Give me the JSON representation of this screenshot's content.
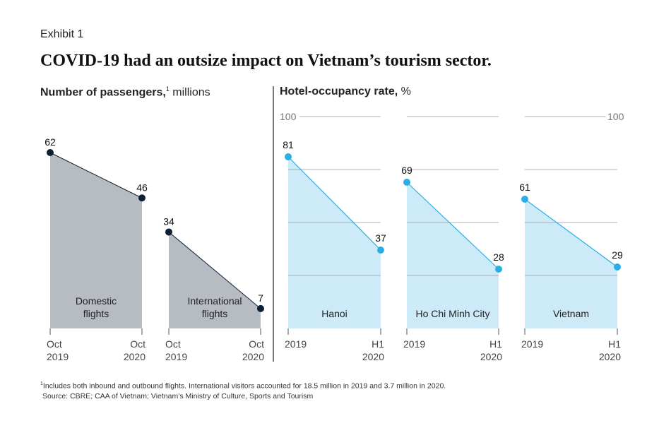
{
  "exhibit_label": "Exhibit 1",
  "title": "COVID-19 had an outsize impact on Vietnam’s tourism sector.",
  "footnote": {
    "marker": "1",
    "line1": "Includes both inbound and outbound flights. International visitors accounted for 18.5 million in 2019 and 3.7 million in 2020.",
    "line2": "Source: CBRE; CAA of Vietnam; Vietnam’s Ministry of Culture, Sports and Tourism"
  },
  "left_panel": {
    "title_bold": "Number of passengers,",
    "title_sup": "1",
    "title_rest": " millions"
  },
  "right_panel": {
    "title_bold": "Hotel-occupancy rate,",
    "title_rest": " %"
  },
  "colors": {
    "passenger_fill": "#b6bcc2",
    "passenger_marker": "#0c1f33",
    "occupancy_fill": "#cdeaf8",
    "occupancy_line": "#29aee6",
    "grid": "#9a9a9a",
    "divider": "#333333"
  },
  "chart_data": [
    {
      "type": "area",
      "title": "Domestic flights",
      "x": [
        [
          "Oct",
          "2019"
        ],
        [
          "Oct",
          "2020"
        ]
      ],
      "values": [
        62,
        46
      ],
      "ylim": [
        0,
        62
      ],
      "label_lines": [
        "Domestic",
        "flights"
      ],
      "unit": "millions"
    },
    {
      "type": "area",
      "title": "International flights",
      "x": [
        [
          "Oct",
          "2019"
        ],
        [
          "Oct",
          "2020"
        ]
      ],
      "values": [
        34,
        7
      ],
      "ylim": [
        0,
        62
      ],
      "label_lines": [
        "International",
        "flights"
      ],
      "unit": "millions"
    },
    {
      "type": "area",
      "title": "Hanoi",
      "x": [
        [
          "",
          "2019"
        ],
        [
          "H1",
          "2020"
        ]
      ],
      "values": [
        81,
        37
      ],
      "ylim": [
        0,
        100
      ],
      "label_lines": [
        "Hanoi"
      ],
      "unit": "%",
      "axis_label": "100"
    },
    {
      "type": "area",
      "title": "Ho Chi Minh City",
      "x": [
        [
          "",
          "2019"
        ],
        [
          "H1",
          "2020"
        ]
      ],
      "values": [
        69,
        28
      ],
      "ylim": [
        0,
        100
      ],
      "label_lines": [
        "Ho Chi Minh City"
      ],
      "unit": "%"
    },
    {
      "type": "area",
      "title": "Vietnam",
      "x": [
        [
          "",
          "2019"
        ],
        [
          "H1",
          "2020"
        ]
      ],
      "values": [
        61,
        29
      ],
      "ylim": [
        0,
        100
      ],
      "label_lines": [
        "Vietnam"
      ],
      "unit": "%",
      "axis_label": "100"
    }
  ]
}
